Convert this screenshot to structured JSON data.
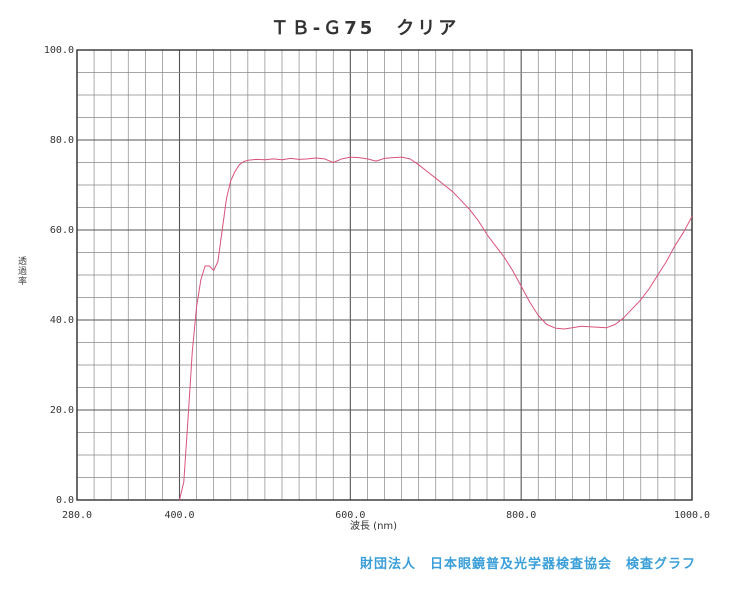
{
  "chart_data": {
    "type": "line",
    "title": "ＴＢ-Ｇ75　クリア",
    "xlabel": "波長 (nm)",
    "ylabel": "透過率",
    "xlim": [
      280,
      1000
    ],
    "ylim": [
      0,
      100
    ],
    "x_ticks": [
      "280.0",
      "400.0",
      "600.0",
      "800.0",
      "1000.0"
    ],
    "x_tick_values": [
      280,
      400,
      600,
      800,
      1000
    ],
    "y_ticks": [
      "0.0",
      "20.0",
      "40.0",
      "60.0",
      "80.0",
      "100.0"
    ],
    "y_tick_values": [
      0,
      20,
      40,
      60,
      80,
      100
    ],
    "grid": true,
    "series": [
      {
        "color": "#d9537a",
        "x": [
          400,
          405,
          410,
          415,
          420,
          425,
          430,
          435,
          440,
          445,
          450,
          455,
          460,
          465,
          470,
          475,
          480,
          490,
          500,
          510,
          520,
          530,
          540,
          550,
          560,
          570,
          580,
          590,
          600,
          610,
          620,
          630,
          640,
          650,
          660,
          670,
          680,
          690,
          700,
          710,
          720,
          730,
          740,
          750,
          760,
          770,
          780,
          790,
          800,
          810,
          820,
          830,
          840,
          850,
          860,
          870,
          880,
          890,
          900,
          910,
          920,
          930,
          940,
          950,
          960,
          970,
          980,
          990,
          1000
        ],
        "y": [
          0,
          4,
          18,
          33,
          43,
          49,
          52,
          52,
          51,
          53,
          60,
          67,
          71,
          73,
          74.5,
          75.2,
          75.5,
          75.7,
          75.6,
          75.8,
          75.6,
          75.9,
          75.7,
          75.8,
          76,
          75.8,
          75,
          75.8,
          76.2,
          76.1,
          75.8,
          75.3,
          75.9,
          76.1,
          76.2,
          75.8,
          74.5,
          73,
          71.5,
          70,
          68.5,
          66.5,
          64.5,
          62,
          59,
          56.5,
          54,
          51,
          47.5,
          44,
          41,
          39,
          38.2,
          38,
          38.3,
          38.6,
          38.5,
          38.4,
          38.3,
          39,
          40.5,
          42.5,
          44.5,
          47,
          50,
          53,
          56.5,
          59.5,
          63
        ]
      }
    ]
  },
  "footer": "財団法人　日本眼鏡普及光学器検査協会　検査グラフ"
}
